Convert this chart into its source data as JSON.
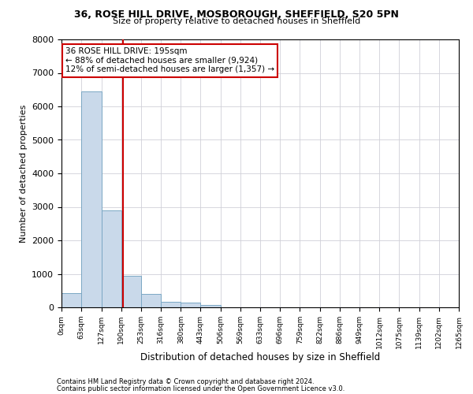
{
  "title1": "36, ROSE HILL DRIVE, MOSBOROUGH, SHEFFIELD, S20 5PN",
  "title2": "Size of property relative to detached houses in Sheffield",
  "xlabel": "Distribution of detached houses by size in Sheffield",
  "ylabel": "Number of detached properties",
  "bar_color": "#c9d9ea",
  "bar_edge_color": "#7ba7c4",
  "annotation_box_color": "#cc0000",
  "annotation_line_color": "#cc0000",
  "property_line_x": 195,
  "annotation_text1": "36 ROSE HILL DRIVE: 195sqm",
  "annotation_text2": "← 88% of detached houses are smaller (9,924)",
  "annotation_text3": "12% of semi-detached houses are larger (1,357) →",
  "footnote1": "Contains HM Land Registry data © Crown copyright and database right 2024.",
  "footnote2": "Contains public sector information licensed under the Open Government Licence v3.0.",
  "bin_edges": [
    0,
    63,
    127,
    190,
    253,
    316,
    380,
    443,
    506,
    569,
    633,
    696,
    759,
    822,
    886,
    949,
    1012,
    1075,
    1139,
    1202,
    1265
  ],
  "bin_labels": [
    "0sqm",
    "63sqm",
    "127sqm",
    "190sqm",
    "253sqm",
    "316sqm",
    "380sqm",
    "443sqm",
    "506sqm",
    "569sqm",
    "633sqm",
    "696sqm",
    "759sqm",
    "822sqm",
    "886sqm",
    "949sqm",
    "1012sqm",
    "1075sqm",
    "1139sqm",
    "1202sqm",
    "1265sqm"
  ],
  "bar_heights": [
    430,
    6450,
    2900,
    950,
    390,
    175,
    130,
    80,
    0,
    0,
    0,
    0,
    0,
    0,
    0,
    0,
    0,
    0,
    0,
    0
  ],
  "ylim": [
    0,
    8000
  ],
  "yticks": [
    0,
    1000,
    2000,
    3000,
    4000,
    5000,
    6000,
    7000,
    8000
  ],
  "background_color": "#ffffff",
  "grid_color": "#d0d0d8"
}
